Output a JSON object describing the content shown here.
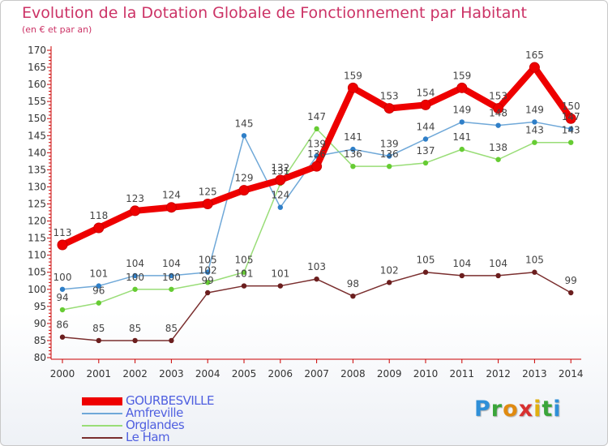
{
  "header": {
    "title": "Evolution de la Dotation Globale de Fonctionnement par Habitant",
    "subtitle": "(en € et par an)"
  },
  "chart_data": {
    "type": "line",
    "title": "Evolution de la Dotation Globale de Fonctionnement par Habitant",
    "subtitle": "(en € et par an)",
    "xlabel": "",
    "ylabel": "",
    "x": [
      "2000",
      "2001",
      "2002",
      "2003",
      "2004",
      "2005",
      "2006",
      "2007",
      "2008",
      "2009",
      "2010",
      "2011",
      "2012",
      "2013",
      "2014"
    ],
    "ylim": [
      80,
      170
    ],
    "yticks": [
      80,
      85,
      90,
      95,
      100,
      105,
      110,
      115,
      120,
      125,
      130,
      135,
      140,
      145,
      150,
      155,
      160,
      165,
      170
    ],
    "grid": false,
    "legend_position": "bottom-left",
    "series": [
      {
        "name": "GOURBESVILLE",
        "color": "#ee0000",
        "values": [
          113,
          118,
          123,
          124,
          125,
          129,
          132,
          136,
          159,
          153,
          154,
          159,
          153,
          165,
          150
        ]
      },
      {
        "name": "Amfreville",
        "color": "#6fa8d8",
        "values": [
          100,
          101,
          104,
          104,
          105,
          145,
          124,
          139,
          141,
          139,
          144,
          149,
          148,
          149,
          147
        ]
      },
      {
        "name": "Orglandes",
        "color": "#99dd77",
        "values": [
          94,
          96,
          100,
          100,
          102,
          105,
          131,
          147,
          136,
          136,
          137,
          141,
          138,
          143,
          143
        ]
      },
      {
        "name": "Le Ham",
        "color": "#7a2e2e",
        "values": [
          86,
          85,
          85,
          85,
          99,
          101,
          101,
          103,
          98,
          102,
          105,
          104,
          104,
          105,
          99
        ]
      }
    ]
  },
  "logo": {
    "letters": [
      "P",
      "r",
      "o",
      "x",
      "i",
      "t",
      "i"
    ]
  }
}
